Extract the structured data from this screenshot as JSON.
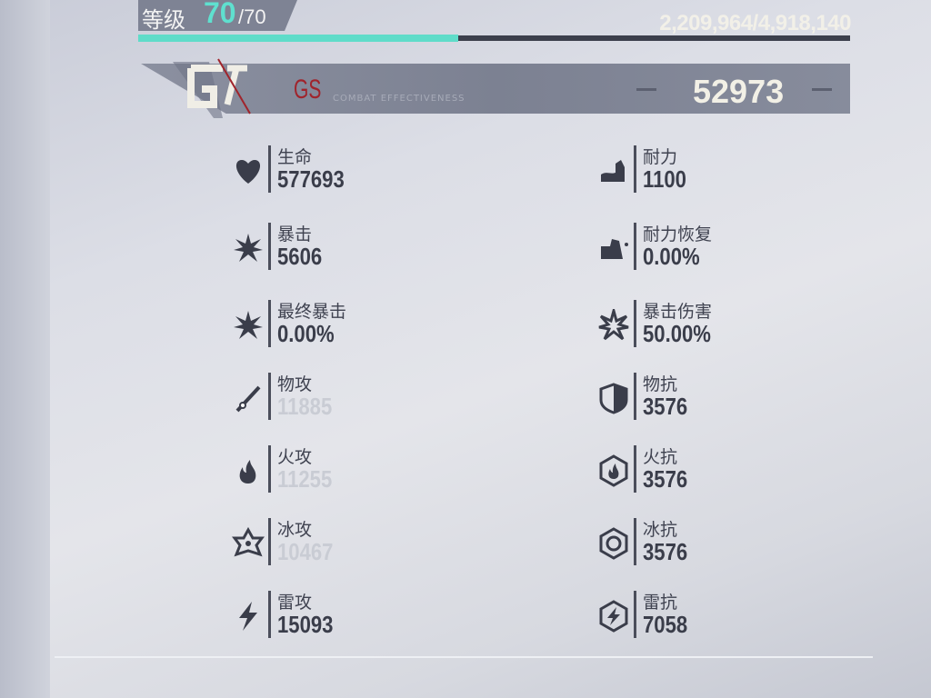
{
  "level": {
    "label": "等级",
    "current": "70",
    "max": "/70",
    "exp_text": "2,209,964/4,918,140",
    "exp_fraction": 0.449
  },
  "gs": {
    "title": "GS",
    "subtitle": "COMBAT EFFECTIVENESS",
    "value": "52973"
  },
  "colors": {
    "accent": "#5fdcc9",
    "gs_red": "#a0242c"
  },
  "stats_left": [
    {
      "label": "生命",
      "value": "577693",
      "icon": "heart-icon"
    },
    {
      "label": "暴击",
      "value": "5606",
      "icon": "crit-burst-icon"
    },
    {
      "label": "最终暴击",
      "value": "0.00%",
      "icon": "final-crit-icon"
    },
    {
      "label": "物攻",
      "value": "11885",
      "icon": "sword-icon",
      "faded": true
    },
    {
      "label": "火攻",
      "value": "11255",
      "icon": "flame-icon",
      "faded": true
    },
    {
      "label": "冰攻",
      "value": "10467",
      "icon": "snowflake-icon",
      "faded": true
    },
    {
      "label": "雷攻",
      "value": "15093",
      "icon": "lightning-icon"
    }
  ],
  "stats_right": [
    {
      "label": "耐力",
      "value": "1100",
      "icon": "muscle-icon"
    },
    {
      "label": "耐力恢复",
      "value": "0.00%",
      "icon": "stamina-recovery-icon"
    },
    {
      "label": "暴击伤害",
      "value": "50.00%",
      "icon": "crit-damage-icon"
    },
    {
      "label": "物抗",
      "value": "3576",
      "icon": "shield-icon"
    },
    {
      "label": "火抗",
      "value": "3576",
      "icon": "fire-resist-icon"
    },
    {
      "label": "冰抗",
      "value": "3576",
      "icon": "ice-resist-icon"
    },
    {
      "label": "雷抗",
      "value": "7058",
      "icon": "thunder-resist-icon"
    }
  ]
}
